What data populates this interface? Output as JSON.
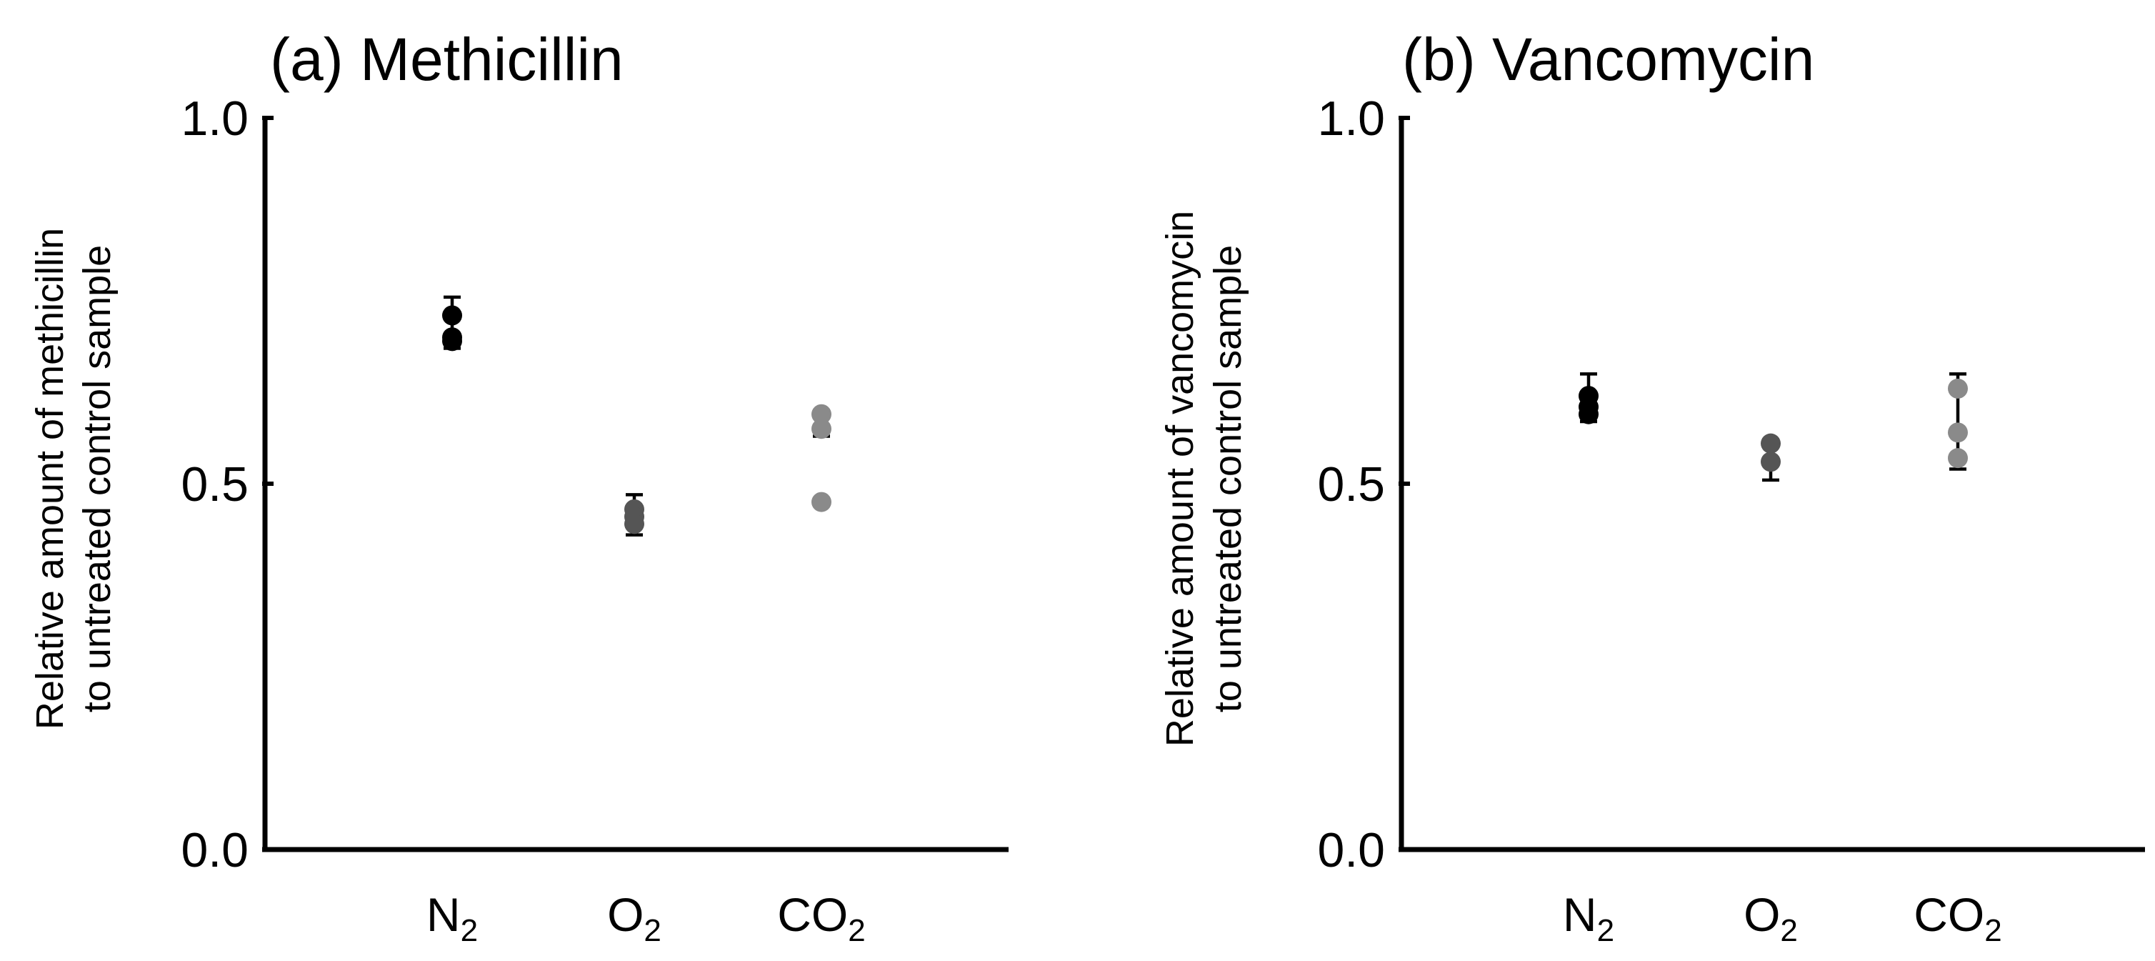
{
  "chart_data": [
    {
      "type": "scatter",
      "title": "(a) Methicillin",
      "ylabel_lines": [
        "Relative amount of methicillin",
        "to untreated control sample"
      ],
      "xlabel": "",
      "ylim": [
        0.0,
        1.0
      ],
      "yticks": [
        "0.0",
        "0.5",
        "1.0"
      ],
      "grid": false,
      "categories": [
        {
          "main": "N",
          "sub": "2"
        },
        {
          "main": "O",
          "sub": "2"
        },
        {
          "main": "CO",
          "sub": "2"
        }
      ],
      "colors": [
        "#000000",
        "#555555",
        "#8a8a8a"
      ],
      "points": [
        {
          "category": 0,
          "values": [
            0.73,
            0.7,
            0.695
          ],
          "err_high": 0.755,
          "err_low": 0.685
        },
        {
          "category": 1,
          "values": [
            0.465,
            0.455,
            0.445
          ],
          "err_high": 0.485,
          "err_low": 0.43
        },
        {
          "category": 2,
          "values": [
            0.595,
            0.575,
            0.475
          ],
          "err_high": 0.6,
          "err_low": 0.565
        }
      ]
    },
    {
      "type": "scatter",
      "title": "(b) Vancomycin",
      "ylabel_lines": [
        "Relative amount of vancomycin",
        "to untreated control sample"
      ],
      "xlabel": "",
      "ylim": [
        0.0,
        1.0
      ],
      "yticks": [
        "0.0",
        "0.5",
        "1.0"
      ],
      "grid": false,
      "categories": [
        {
          "main": "N",
          "sub": "2"
        },
        {
          "main": "O",
          "sub": "2"
        },
        {
          "main": "CO",
          "sub": "2"
        }
      ],
      "colors": [
        "#000000",
        "#555555",
        "#8a8a8a"
      ],
      "points": [
        {
          "category": 0,
          "values": [
            0.62,
            0.605,
            0.595
          ],
          "err_high": 0.65,
          "err_low": 0.585
        },
        {
          "category": 1,
          "values": [
            0.555,
            0.53
          ],
          "err_high": 0.56,
          "err_low": 0.505
        },
        {
          "category": 2,
          "values": [
            0.63,
            0.57,
            0.535
          ],
          "err_high": 0.65,
          "err_low": 0.52
        }
      ]
    }
  ]
}
